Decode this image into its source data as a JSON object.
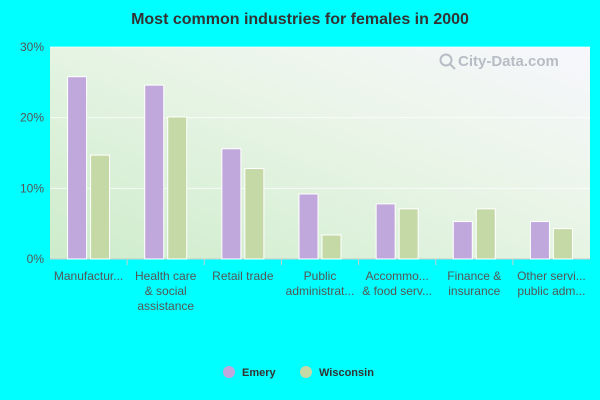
{
  "chart_data": {
    "type": "bar",
    "title": "Most common industries for females in 2000",
    "categories": [
      [
        "Manufactur..."
      ],
      [
        "Health care",
        "& social",
        "assistance"
      ],
      [
        "Retail trade"
      ],
      [
        "Public",
        "administrat..."
      ],
      [
        "Accommo...",
        "& food serv..."
      ],
      [
        "Finance &",
        "insurance"
      ],
      [
        "Other servi...",
        "public adm..."
      ]
    ],
    "series": [
      {
        "name": "Emery",
        "values": [
          25.8,
          24.6,
          15.6,
          9.2,
          7.8,
          5.3,
          5.3
        ]
      },
      {
        "name": "Wisconsin",
        "values": [
          14.7,
          20.1,
          12.8,
          3.4,
          7.1,
          7.1,
          4.3
        ]
      }
    ],
    "ylim": [
      0,
      30
    ],
    "yticks": [
      0,
      10,
      20,
      30
    ],
    "ytick_labels": [
      "0%",
      "10%",
      "20%",
      "30%"
    ],
    "xlabel": "",
    "ylabel": "",
    "grid": true,
    "legend_position": "bottom-center",
    "colors": {
      "Emery": "#c0a8dc",
      "Wisconsin": "#c5d9a6"
    },
    "watermark": "City-Data.com"
  }
}
